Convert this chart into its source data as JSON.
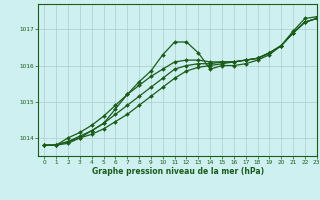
{
  "xlabel": "Graphe pression niveau de la mer (hPa)",
  "bg_color": "#cef0f0",
  "grid_color": "#b0cccc",
  "line_color": "#1a5c1a",
  "ylim": [
    1013.5,
    1017.7
  ],
  "xlim": [
    -0.5,
    23
  ],
  "yticks": [
    1014,
    1015,
    1016,
    1017
  ],
  "xticks": [
    0,
    1,
    2,
    3,
    4,
    5,
    6,
    7,
    8,
    9,
    10,
    11,
    12,
    13,
    14,
    15,
    16,
    17,
    18,
    19,
    20,
    21,
    22,
    23
  ],
  "line_peak": [
    1013.8,
    1013.8,
    1013.85,
    1014.0,
    1014.2,
    1014.4,
    1014.8,
    1015.2,
    1015.55,
    1015.85,
    1016.3,
    1016.65,
    1016.65,
    1016.35,
    1015.9,
    1016.0,
    1016.0,
    1016.05,
    1016.15,
    1016.3,
    1016.55,
    1016.95,
    1017.3,
    1017.35
  ],
  "line_a": [
    1013.8,
    1013.8,
    1013.9,
    1014.0,
    1014.1,
    1014.25,
    1014.45,
    1014.65,
    1014.9,
    1015.15,
    1015.4,
    1015.65,
    1015.85,
    1015.95,
    1016.0,
    1016.05,
    1016.1,
    1016.15,
    1016.2,
    1016.35,
    1016.55,
    1016.9,
    1017.2,
    1017.3
  ],
  "line_b": [
    1013.8,
    1013.8,
    1013.9,
    1014.05,
    1014.2,
    1014.4,
    1014.65,
    1014.9,
    1015.15,
    1015.4,
    1015.65,
    1015.9,
    1016.0,
    1016.05,
    1016.05,
    1016.1,
    1016.1,
    1016.15,
    1016.2,
    1016.35,
    1016.55,
    1016.9,
    1017.2,
    1017.3
  ],
  "line_c": [
    1013.8,
    1013.8,
    1014.0,
    1014.15,
    1014.35,
    1014.6,
    1014.9,
    1015.2,
    1015.45,
    1015.7,
    1015.9,
    1016.1,
    1016.15,
    1016.15,
    1016.1,
    1016.1,
    1016.1,
    1016.15,
    1016.2,
    1016.35,
    1016.55,
    1016.9,
    1017.2,
    1017.3
  ]
}
